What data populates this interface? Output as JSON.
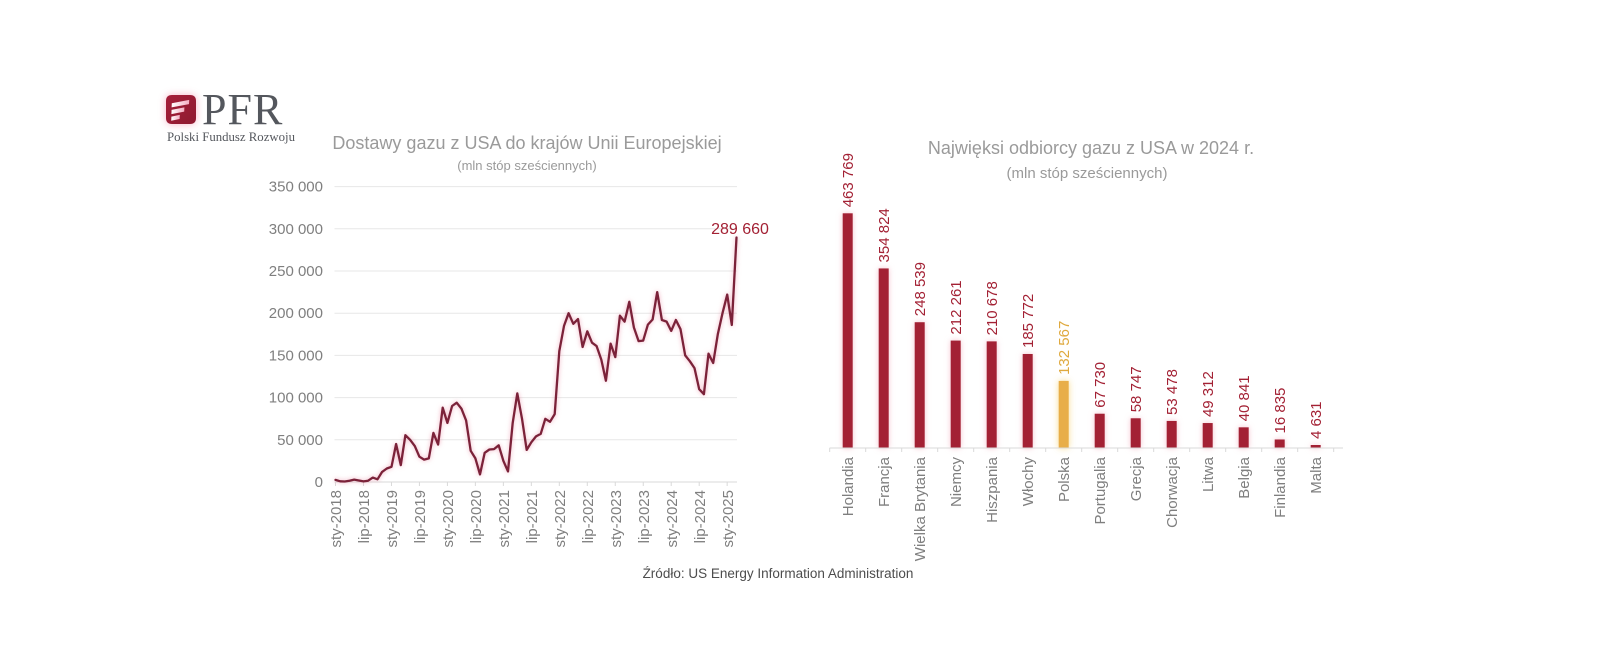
{
  "logo": {
    "brand": "PFR",
    "tagline": "Polski Fundusz Rozwoju"
  },
  "footer": {
    "source": "Źródło: US Energy Information Administration"
  },
  "colors": {
    "background": "#ffffff",
    "crimson": "#a32134",
    "line": "#7b2239",
    "gold": "#e8ae49",
    "gold_label": "#dfa93e",
    "title_gray": "#9a9a9a",
    "axis_gray": "#7f7f7f",
    "grid": "#e7e7e7",
    "axis_line": "#d9d9d9",
    "footer_gray": "#4d4d4d",
    "logo_text": "#54575d",
    "logo_mark": "#9a1b33"
  },
  "chart_data": [
    {
      "type": "line",
      "title": "Dostawy gazu z USA do krajów Unii Europejskiej",
      "subtitle": "(mln stóp sześciennych)",
      "ylabel": "",
      "xlabel": "",
      "ylim": [
        0,
        350000
      ],
      "y_ticks": [
        0,
        50000,
        100000,
        150000,
        200000,
        250000,
        300000,
        350000
      ],
      "x_tick_labels": [
        "sty-2018",
        "lip-2018",
        "sty-2019",
        "lip-2019",
        "sty-2020",
        "lip-2020",
        "sty-2021",
        "lip-2021",
        "sty-2022",
        "lip-2022",
        "sty-2023",
        "lip-2023",
        "sty-2024",
        "lip-2024",
        "sty-2025"
      ],
      "months": [
        "2018-01",
        "2018-02",
        "2018-03",
        "2018-04",
        "2018-05",
        "2018-06",
        "2018-07",
        "2018-08",
        "2018-09",
        "2018-10",
        "2018-11",
        "2018-12",
        "2019-01",
        "2019-02",
        "2019-03",
        "2019-04",
        "2019-05",
        "2019-06",
        "2019-07",
        "2019-08",
        "2019-09",
        "2019-10",
        "2019-11",
        "2019-12",
        "2020-01",
        "2020-02",
        "2020-03",
        "2020-04",
        "2020-05",
        "2020-06",
        "2020-07",
        "2020-08",
        "2020-09",
        "2020-10",
        "2020-11",
        "2020-12",
        "2021-01",
        "2021-02",
        "2021-03",
        "2021-04",
        "2021-05",
        "2021-06",
        "2021-07",
        "2021-08",
        "2021-09",
        "2021-10",
        "2021-11",
        "2021-12",
        "2022-01",
        "2022-02",
        "2022-03",
        "2022-04",
        "2022-05",
        "2022-06",
        "2022-07",
        "2022-08",
        "2022-09",
        "2022-10",
        "2022-11",
        "2022-12",
        "2023-01",
        "2023-02",
        "2023-03",
        "2023-04",
        "2023-05",
        "2023-06",
        "2023-07",
        "2023-08",
        "2023-09",
        "2023-10",
        "2023-11",
        "2023-12",
        "2024-01",
        "2024-02",
        "2024-03",
        "2024-04",
        "2024-05",
        "2024-06",
        "2024-07",
        "2024-08",
        "2024-09",
        "2024-10",
        "2024-11",
        "2024-12",
        "2025-01",
        "2025-02",
        "2025-03"
      ],
      "values": [
        2500,
        800,
        600,
        1500,
        2800,
        1800,
        700,
        1500,
        5200,
        3200,
        12000,
        16000,
        18000,
        45000,
        20000,
        55400,
        50000,
        42500,
        30000,
        26500,
        28000,
        58200,
        44400,
        88000,
        70000,
        90000,
        94000,
        87000,
        73000,
        37000,
        28000,
        9000,
        34600,
        38500,
        39000,
        43500,
        25000,
        12500,
        70000,
        105000,
        75000,
        38000,
        47000,
        54000,
        57000,
        74900,
        71300,
        80500,
        155000,
        185000,
        200000,
        187500,
        193000,
        160000,
        178500,
        165000,
        161000,
        145000,
        120000,
        164000,
        148000,
        197000,
        190000,
        213500,
        183000,
        167000,
        167500,
        186500,
        192500,
        225000,
        192000,
        190000,
        179000,
        192000,
        181000,
        150000,
        143000,
        135000,
        110000,
        104000,
        152000,
        141000,
        175000,
        200000,
        222000,
        186000,
        289660
      ],
      "annotation": {
        "text": "289 660",
        "month": "2025-03",
        "value": 289660
      },
      "grid": true,
      "legend": false
    },
    {
      "type": "bar",
      "title": "Najwięksi odbiorcy gazu z USA w 2024 r.",
      "subtitle": "(mln stóp sześciennych)",
      "categories": [
        "Holandia",
        "Francja",
        "Wielka Brytania",
        "Niemcy",
        "Hiszpania",
        "Włochy",
        "Polska",
        "Portugalia",
        "Grecja",
        "Chorwacja",
        "Litwa",
        "Belgia",
        "Finlandia",
        "Malta"
      ],
      "values": [
        463769,
        354824,
        248539,
        212261,
        210678,
        185772,
        132567,
        67730,
        58747,
        53478,
        49312,
        40841,
        16835,
        4631
      ],
      "highlight_category": "Polska",
      "ylim": [
        0,
        463769
      ],
      "grid": false,
      "legend": false
    }
  ]
}
